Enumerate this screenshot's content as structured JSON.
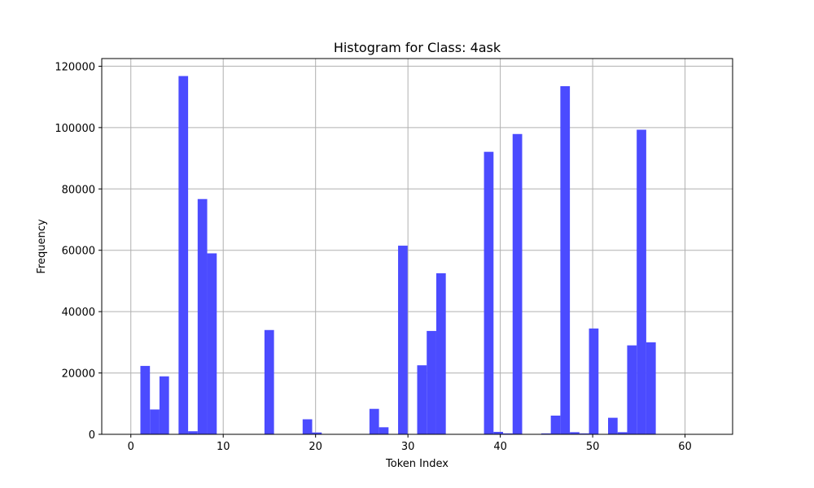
{
  "chart_data": {
    "type": "bar",
    "title": "Histogram for Class: 4ask",
    "xlabel": "Token Index",
    "ylabel": "Frequency",
    "xlim": [
      -3.15,
      65.15
    ],
    "ylim": [
      0,
      122500
    ],
    "xticks": [
      0,
      10,
      20,
      30,
      40,
      50,
      60
    ],
    "yticks": [
      0,
      20000,
      40000,
      60000,
      80000,
      100000,
      120000
    ],
    "grid": true,
    "bar_color": "#4b4bff",
    "bin_width": 1.0333,
    "bins": [
      {
        "x0": 0.0,
        "value": 0
      },
      {
        "x0": 1.0333,
        "value": 22300
      },
      {
        "x0": 2.0667,
        "value": 8100
      },
      {
        "x0": 3.1,
        "value": 18900
      },
      {
        "x0": 4.1333,
        "value": 0
      },
      {
        "x0": 5.1667,
        "value": 116800
      },
      {
        "x0": 6.2,
        "value": 1000
      },
      {
        "x0": 7.2333,
        "value": 76700
      },
      {
        "x0": 8.2667,
        "value": 59000
      },
      {
        "x0": 14.4667,
        "value": 34000
      },
      {
        "x0": 18.6,
        "value": 4900
      },
      {
        "x0": 19.6333,
        "value": 600
      },
      {
        "x0": 25.8333,
        "value": 8300
      },
      {
        "x0": 26.8667,
        "value": 2300
      },
      {
        "x0": 28.9333,
        "value": 61500
      },
      {
        "x0": 30.9999,
        "value": 22500
      },
      {
        "x0": 32.0333,
        "value": 33700
      },
      {
        "x0": 33.0667,
        "value": 52500
      },
      {
        "x0": 38.2333,
        "value": 92100
      },
      {
        "x0": 39.2667,
        "value": 800
      },
      {
        "x0": 40.3,
        "value": 300
      },
      {
        "x0": 41.3333,
        "value": 97900
      },
      {
        "x0": 44.4333,
        "value": 300
      },
      {
        "x0": 45.4667,
        "value": 6100
      },
      {
        "x0": 46.5,
        "value": 113500
      },
      {
        "x0": 47.5333,
        "value": 700
      },
      {
        "x0": 48.5667,
        "value": 300
      },
      {
        "x0": 49.6,
        "value": 34500
      },
      {
        "x0": 51.6667,
        "value": 5400
      },
      {
        "x0": 52.7,
        "value": 700
      },
      {
        "x0": 53.7333,
        "value": 29000
      },
      {
        "x0": 54.7667,
        "value": 99300
      },
      {
        "x0": 55.8,
        "value": 30000
      }
    ]
  }
}
